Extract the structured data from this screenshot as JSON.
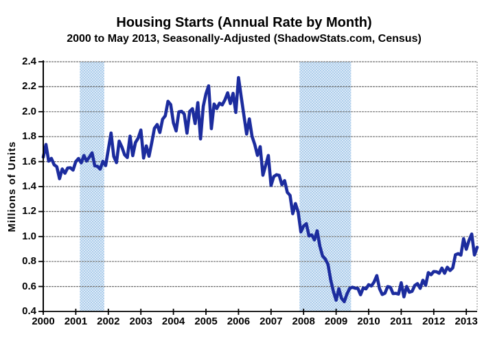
{
  "page": {
    "background": "#ffffff"
  },
  "chart_data": {
    "type": "line",
    "title": "Housing Starts (Annual Rate by Month)",
    "subtitle": "2000 to May 2013, Seasonally-Adjusted (ShadowStats.com, Census)",
    "ylabel": "Millions of Units",
    "xlabel": "",
    "ylim": [
      0.4,
      2.4
    ],
    "ytick_labels": [
      "2.4",
      "2.2",
      "2.0",
      "1.8",
      "1.6",
      "1.4",
      "1.2",
      "1.0",
      "0.8",
      "0.6",
      "0.4"
    ],
    "xtick_labels": [
      "2000",
      "2001",
      "2002",
      "2003",
      "2004",
      "2005",
      "2006",
      "2007",
      "2008",
      "2009",
      "2010",
      "2011",
      "2012",
      "2013"
    ],
    "x_start": "2000-01",
    "x_end": "2013-05",
    "grid": true,
    "legend": "none",
    "series": [
      {
        "name": "Housing Starts (millions of units, seasonally-adjusted annual rate)",
        "color": "#1C2C9E",
        "values": [
          1.636,
          1.737,
          1.604,
          1.626,
          1.575,
          1.559,
          1.463,
          1.541,
          1.507,
          1.549,
          1.551,
          1.532,
          1.6,
          1.625,
          1.59,
          1.649,
          1.605,
          1.636,
          1.67,
          1.567,
          1.562,
          1.54,
          1.602,
          1.568,
          1.698,
          1.829,
          1.642,
          1.592,
          1.764,
          1.717,
          1.655,
          1.633,
          1.804,
          1.648,
          1.753,
          1.788,
          1.853,
          1.629,
          1.726,
          1.643,
          1.751,
          1.867,
          1.897,
          1.833,
          1.939,
          1.967,
          2.083,
          2.057,
          1.911,
          1.846,
          1.998,
          2.003,
          1.981,
          1.828,
          2.002,
          2.024,
          1.905,
          2.072,
          1.782,
          2.042,
          2.144,
          2.207,
          1.864,
          2.061,
          2.025,
          2.068,
          2.054,
          2.095,
          2.151,
          2.065,
          2.147,
          1.994,
          2.273,
          2.119,
          1.969,
          1.821,
          1.942,
          1.802,
          1.737,
          1.65,
          1.72,
          1.491,
          1.57,
          1.649,
          1.409,
          1.48,
          1.495,
          1.49,
          1.415,
          1.448,
          1.354,
          1.33,
          1.183,
          1.264,
          1.197,
          1.037,
          1.084,
          1.103,
          1.005,
          1.013,
          0.973,
          1.046,
          0.923,
          0.844,
          0.82,
          0.777,
          0.652,
          0.56,
          0.49,
          0.582,
          0.505,
          0.478,
          0.54,
          0.585,
          0.594,
          0.586,
          0.585,
          0.534,
          0.588,
          0.581,
          0.614,
          0.604,
          0.636,
          0.687,
          0.583,
          0.536,
          0.546,
          0.599,
          0.594,
          0.543,
          0.545,
          0.539,
          0.63,
          0.517,
          0.6,
          0.554,
          0.561,
          0.608,
          0.623,
          0.585,
          0.65,
          0.61,
          0.711,
          0.694,
          0.72,
          0.718,
          0.706,
          0.747,
          0.706,
          0.754,
          0.728,
          0.749,
          0.854,
          0.863,
          0.851,
          0.983,
          0.898,
          0.969,
          1.02,
          0.852,
          0.914
        ]
      }
    ],
    "recession_bands": [
      {
        "from": "2001-03",
        "to": "2001-11"
      },
      {
        "from": "2007-12",
        "to": "2009-06"
      }
    ],
    "colors": {
      "line": "#1C2C9E",
      "band_dot": "#9cc4e8",
      "band_bg": "#ddeaf7",
      "grid": "#6f6f6f",
      "border": "#9a9a9a",
      "axis": "#000000",
      "text": "#000000"
    }
  }
}
